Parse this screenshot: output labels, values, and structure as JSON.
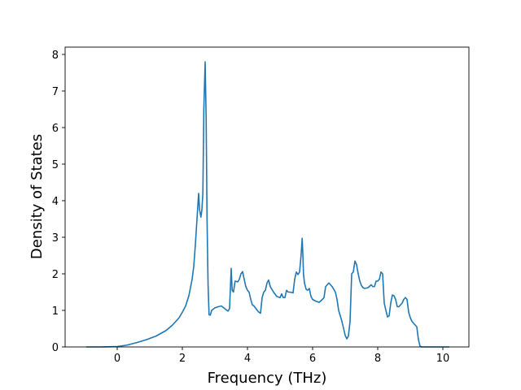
{
  "chart_data": {
    "type": "line",
    "title": "",
    "xlabel": "Frequency (THz)",
    "ylabel": "Density of States",
    "xlim": [
      -1.6,
      10.8
    ],
    "ylim": [
      0,
      8.2
    ],
    "xticks": [
      0,
      2,
      4,
      6,
      8,
      10
    ],
    "yticks": [
      0,
      1,
      2,
      3,
      4,
      5,
      6,
      7,
      8
    ],
    "grid": false,
    "legend": "none",
    "line_color": "#1f77b4",
    "series": [
      {
        "x": [
          -0.95,
          -0.5,
          0.0,
          0.3,
          0.6,
          0.9,
          1.2,
          1.5,
          1.7,
          1.9,
          2.0,
          2.1,
          2.2,
          2.3,
          2.35,
          2.4,
          2.45,
          2.5,
          2.53,
          2.57,
          2.6,
          2.63,
          2.66,
          2.7,
          2.73,
          2.76,
          2.79,
          2.82,
          2.86,
          2.9,
          3.0,
          3.1,
          3.2,
          3.3,
          3.4,
          3.45,
          3.5,
          3.53,
          3.57,
          3.62,
          3.7,
          3.75,
          3.8,
          3.85,
          3.9,
          3.95,
          4.0,
          4.05,
          4.1,
          4.15,
          4.2,
          4.3,
          4.35,
          4.4,
          4.45,
          4.5,
          4.55,
          4.6,
          4.65,
          4.7,
          4.8,
          4.9,
          5.0,
          5.05,
          5.1,
          5.15,
          5.2,
          5.25,
          5.3,
          5.4,
          5.45,
          5.5,
          5.55,
          5.6,
          5.65,
          5.68,
          5.7,
          5.72,
          5.75,
          5.8,
          5.85,
          5.9,
          5.95,
          6.0,
          6.1,
          6.2,
          6.3,
          6.35,
          6.4,
          6.45,
          6.5,
          6.55,
          6.6,
          6.7,
          6.75,
          6.8,
          6.9,
          7.0,
          7.05,
          7.1,
          7.15,
          7.2,
          7.25,
          7.3,
          7.35,
          7.4,
          7.45,
          7.5,
          7.55,
          7.6,
          7.7,
          7.8,
          7.85,
          7.9,
          7.95,
          8.0,
          8.05,
          8.1,
          8.15,
          8.2,
          8.25,
          8.3,
          8.35,
          8.4,
          8.45,
          8.5,
          8.55,
          8.6,
          8.65,
          8.7,
          8.75,
          8.8,
          8.85,
          8.9,
          8.95,
          9.0,
          9.05,
          9.1,
          9.15,
          9.2,
          9.25,
          9.3,
          9.35,
          9.5,
          9.8,
          10.0,
          10.2
        ],
        "values": [
          0.0,
          0.0,
          0.01,
          0.05,
          0.12,
          0.2,
          0.3,
          0.45,
          0.6,
          0.8,
          0.95,
          1.12,
          1.4,
          1.85,
          2.2,
          2.8,
          3.5,
          4.2,
          3.75,
          3.55,
          3.75,
          4.2,
          6.5,
          7.8,
          6.3,
          3.4,
          1.7,
          0.88,
          0.87,
          1.0,
          1.07,
          1.1,
          1.12,
          1.05,
          0.98,
          1.05,
          2.15,
          1.55,
          1.5,
          1.8,
          1.78,
          1.85,
          2.0,
          2.06,
          1.85,
          1.65,
          1.55,
          1.5,
          1.3,
          1.15,
          1.12,
          1.0,
          0.95,
          0.92,
          1.35,
          1.5,
          1.55,
          1.75,
          1.83,
          1.65,
          1.5,
          1.38,
          1.35,
          1.45,
          1.35,
          1.35,
          1.55,
          1.5,
          1.5,
          1.48,
          1.85,
          2.05,
          1.98,
          2.05,
          2.55,
          2.97,
          2.55,
          2.0,
          1.75,
          1.58,
          1.55,
          1.6,
          1.38,
          1.3,
          1.25,
          1.22,
          1.3,
          1.35,
          1.65,
          1.7,
          1.75,
          1.7,
          1.65,
          1.5,
          1.3,
          1.0,
          0.7,
          0.32,
          0.22,
          0.3,
          0.7,
          2.0,
          2.05,
          2.35,
          2.25,
          2.0,
          1.8,
          1.68,
          1.62,
          1.6,
          1.62,
          1.7,
          1.65,
          1.65,
          1.8,
          1.8,
          1.85,
          2.05,
          2.0,
          1.2,
          1.0,
          0.82,
          0.85,
          1.2,
          1.42,
          1.4,
          1.3,
          1.1,
          1.1,
          1.15,
          1.2,
          1.3,
          1.35,
          1.3,
          0.95,
          0.8,
          0.7,
          0.65,
          0.6,
          0.55,
          0.2,
          0.02,
          0.0,
          0.0,
          0.0,
          0.0,
          0.0
        ]
      }
    ]
  }
}
